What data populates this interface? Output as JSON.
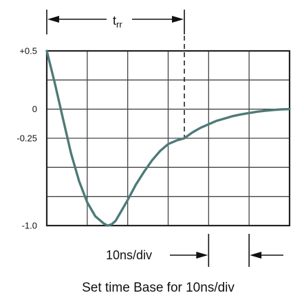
{
  "chart_data": {
    "type": "line",
    "title": "",
    "xlabel": "",
    "ylabel": "",
    "ylim": [
      -1.0,
      0.5
    ],
    "y_ticks": [
      "+0.5",
      "0",
      "-0.25",
      "-1.0"
    ],
    "y_tick_values": [
      0.5,
      0.0,
      -0.25,
      -1.0
    ],
    "x_range_ns": [
      0,
      60
    ],
    "grid": true,
    "trr_label": "t",
    "trr_subscript": "rr",
    "trr_end_ns": 34,
    "trr_level": -0.25,
    "timebase_label": "10ns/div",
    "caption": "Set time Base for 10ns/div",
    "series": [
      {
        "x": [
          0,
          2,
          4,
          6,
          8,
          10,
          12,
          14,
          15,
          16,
          17,
          18,
          20,
          22,
          24,
          26,
          28,
          30,
          32,
          34,
          36,
          38,
          40,
          42,
          44,
          46,
          48,
          50,
          52,
          54,
          56,
          58,
          60
        ],
        "values": [
          0.5,
          0.22,
          -0.08,
          -0.38,
          -0.62,
          -0.8,
          -0.92,
          -0.98,
          -1.0,
          -0.99,
          -0.96,
          -0.9,
          -0.78,
          -0.65,
          -0.54,
          -0.44,
          -0.36,
          -0.3,
          -0.27,
          -0.25,
          -0.2,
          -0.16,
          -0.13,
          -0.1,
          -0.08,
          -0.06,
          -0.045,
          -0.033,
          -0.022,
          -0.014,
          -0.007,
          -0.002,
          0.0
        ]
      }
    ],
    "colors": {
      "curve": "#4e7a78",
      "grid": "#444444",
      "frame": "#222222"
    }
  }
}
